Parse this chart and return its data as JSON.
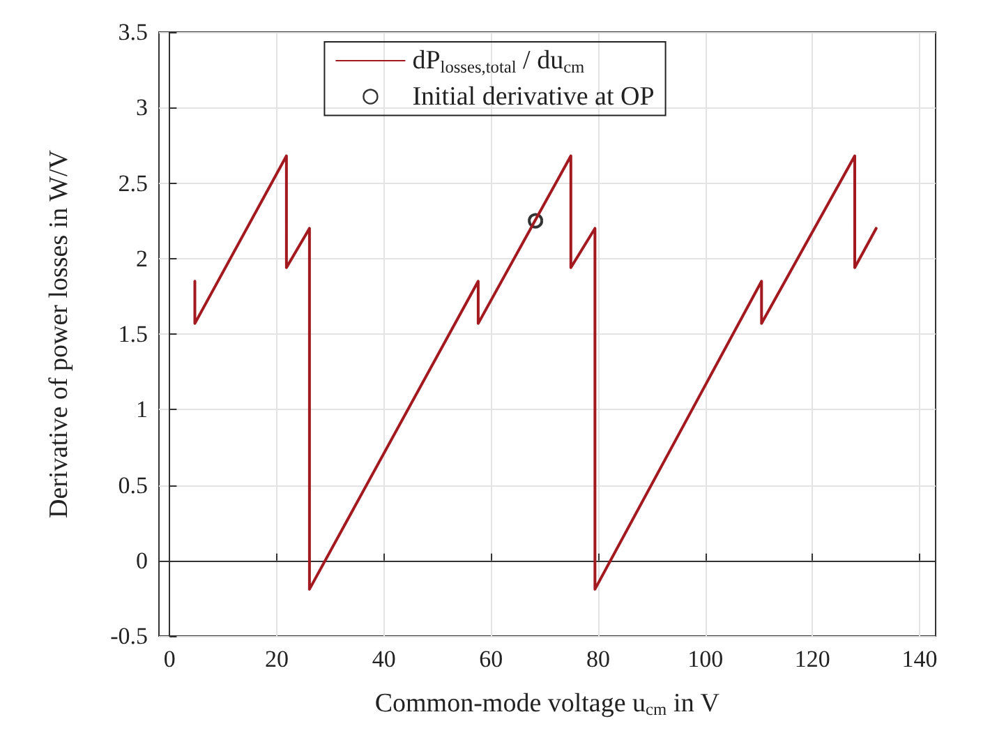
{
  "chart_data": {
    "type": "line",
    "xlabel": "Common-mode voltage u$_{cm}$ in V",
    "ylabel": "Derivative of power losses in W/V",
    "series": [
      {
        "name": "dP$_{losses,total}$ / du$_{cm}$",
        "color": "#a2191f",
        "x": [
          4.7,
          4.7,
          21.8,
          21.8,
          26.1,
          26.1,
          57.6,
          57.6,
          74.9,
          74.9,
          79.4,
          79.4,
          110.5,
          110.5,
          127.9,
          127.9,
          131.9
        ],
        "values": [
          1.85,
          1.57,
          2.68,
          1.94,
          2.2,
          -0.19,
          1.85,
          1.57,
          2.68,
          1.94,
          2.2,
          -0.19,
          1.85,
          1.57,
          2.68,
          1.94,
          2.2
        ],
        "marker": "none",
        "line_style": "solid"
      },
      {
        "name": "Initial derivative at OP",
        "type": "scatter",
        "color": "#000000",
        "x": [
          68.3
        ],
        "values": [
          2.25
        ],
        "marker": "circle"
      }
    ],
    "xlim": [
      -2,
      143
    ],
    "xticks": [
      0,
      20,
      40,
      60,
      80,
      100,
      120,
      140
    ],
    "ylim": [
      -0.5,
      3.5
    ],
    "yticks": [
      -0.5,
      0,
      0.5,
      1,
      1.5,
      2,
      2.5,
      3,
      3.5
    ],
    "grid": true,
    "legend": "top"
  }
}
